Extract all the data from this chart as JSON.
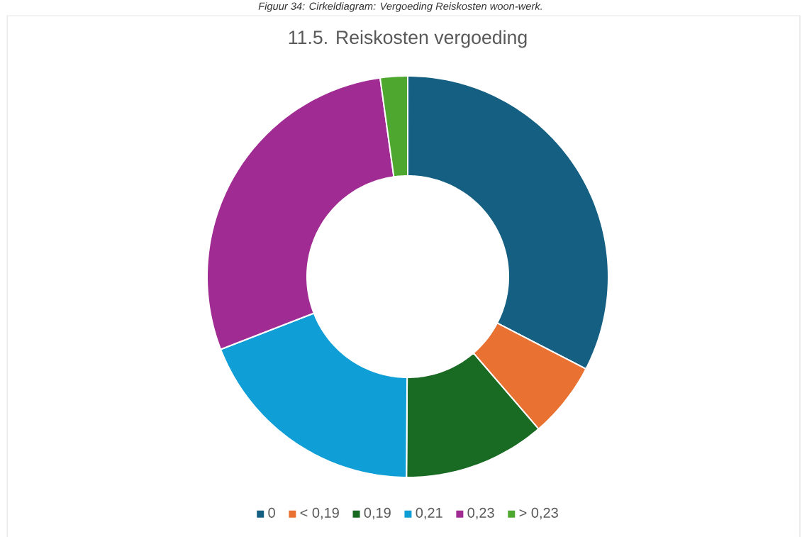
{
  "chart_data": {
    "type": "donut",
    "title": "11.5. Reiskosten vergoeding",
    "annotations": [
      "Figuur 34: Cirkeldiagram: Vergoeding Reiskosten woon-werk."
    ],
    "categories": [
      "0",
      "< 0,19",
      "0,19",
      "0,21",
      "0,23",
      "> 0,23"
    ],
    "values": [
      32.6,
      6.1,
      11.4,
      19.0,
      28.7,
      2.2
    ],
    "colors": [
      "#156082",
      "#e97132",
      "#196b24",
      "#0f9ed5",
      "#a02b93",
      "#4ea72e"
    ],
    "legend": "bottom"
  }
}
